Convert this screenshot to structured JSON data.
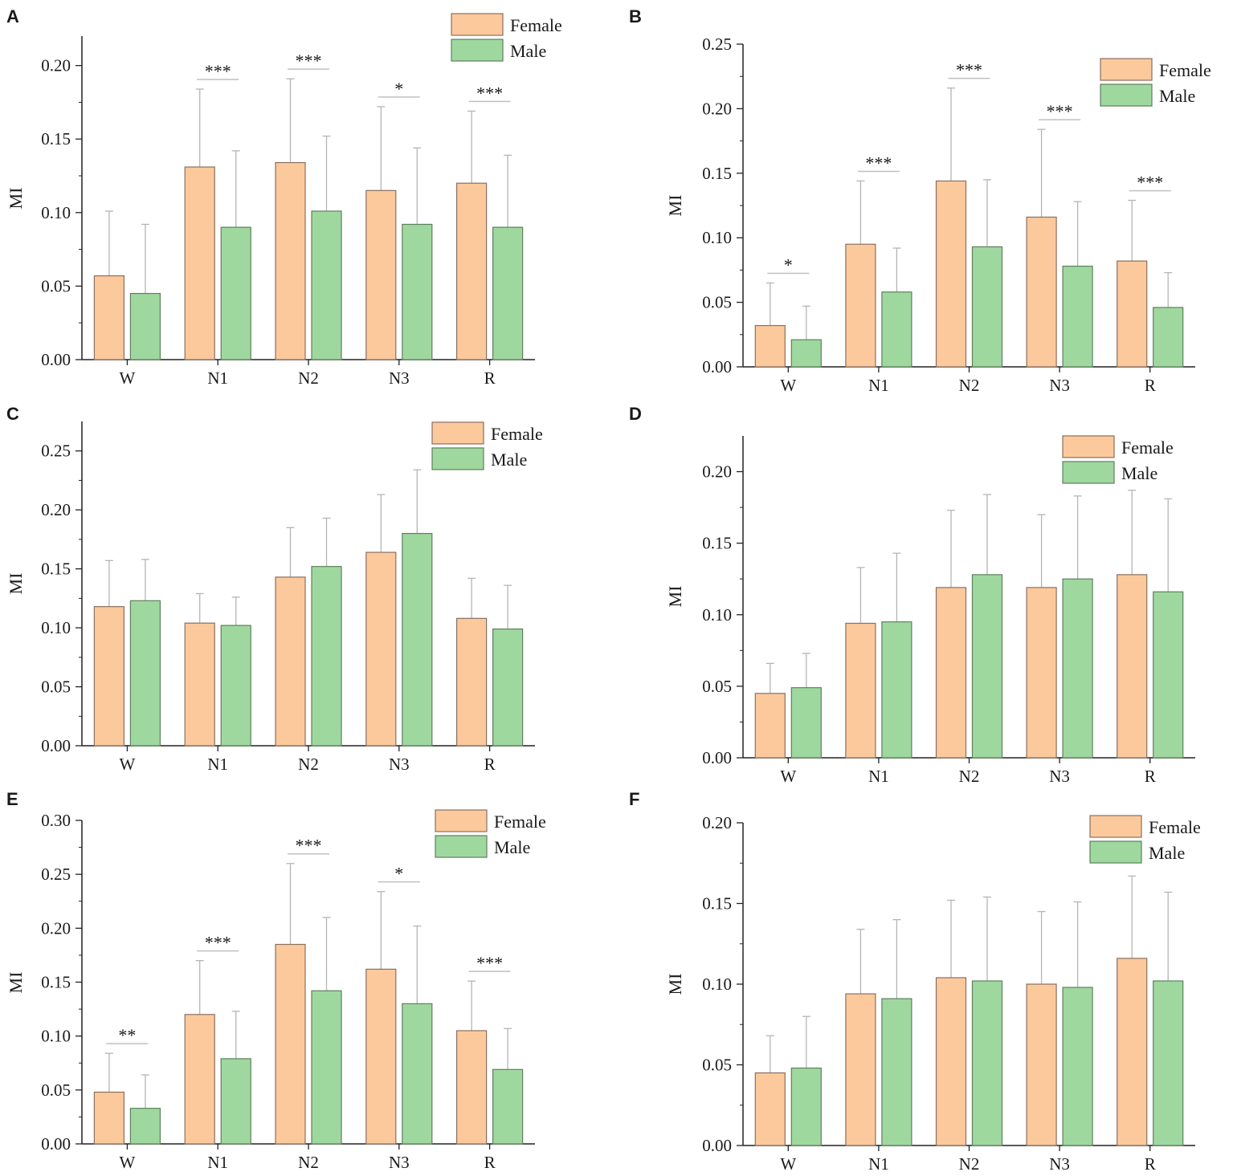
{
  "legend": {
    "female": "Female",
    "male": "Male"
  },
  "colors": {
    "female_fill": "#fbc99b",
    "female_stroke": "#8a7060",
    "male_fill": "#9fd89f",
    "male_stroke": "#5f7f5f",
    "error_bar": "#b5b5b5",
    "axis": "#222222"
  },
  "chart_data": [
    {
      "panel": "A",
      "type": "bar",
      "ylabel": "MI",
      "categories": [
        "W",
        "N1",
        "N2",
        "N3",
        "R"
      ],
      "ylim": [
        0,
        0.22
      ],
      "yticks": [
        "0.00",
        "0.05",
        "0.10",
        "0.15",
        "0.20"
      ],
      "ytick_values": [
        0,
        0.05,
        0.1,
        0.15,
        0.2
      ],
      "legend_position": "top-right",
      "series": [
        {
          "name": "Female",
          "values": [
            0.057,
            0.131,
            0.134,
            0.115,
            0.12
          ],
          "errors": [
            0.044,
            0.053,
            0.057,
            0.057,
            0.049
          ]
        },
        {
          "name": "Male",
          "values": [
            0.045,
            0.09,
            0.101,
            0.092,
            0.09
          ],
          "errors": [
            0.047,
            0.052,
            0.051,
            0.052,
            0.049
          ]
        }
      ],
      "significance": [
        "",
        "***",
        "***",
        "*",
        "***"
      ]
    },
    {
      "panel": "B",
      "type": "bar",
      "ylabel": "MI",
      "categories": [
        "W",
        "N1",
        "N2",
        "N3",
        "R"
      ],
      "ylim": [
        0,
        0.25
      ],
      "yticks": [
        "0.00",
        "0.05",
        "0.10",
        "0.15",
        "0.20",
        "0.25"
      ],
      "ytick_values": [
        0,
        0.05,
        0.1,
        0.15,
        0.2,
        0.25
      ],
      "legend_position": "top-right",
      "series": [
        {
          "name": "Female",
          "values": [
            0.032,
            0.095,
            0.144,
            0.116,
            0.082
          ],
          "errors": [
            0.033,
            0.049,
            0.072,
            0.068,
            0.047
          ]
        },
        {
          "name": "Male",
          "values": [
            0.021,
            0.058,
            0.093,
            0.078,
            0.046
          ],
          "errors": [
            0.026,
            0.034,
            0.052,
            0.05,
            0.027
          ]
        }
      ],
      "significance": [
        "*",
        "***",
        "***",
        "***",
        "***"
      ]
    },
    {
      "panel": "C",
      "type": "bar",
      "ylabel": "MI",
      "categories": [
        "W",
        "N1",
        "N2",
        "N3",
        "R"
      ],
      "ylim": [
        0,
        0.275
      ],
      "yticks": [
        "0.00",
        "0.05",
        "0.10",
        "0.15",
        "0.20",
        "0.25"
      ],
      "ytick_values": [
        0,
        0.05,
        0.1,
        0.15,
        0.2,
        0.25
      ],
      "legend_position": "top-right",
      "series": [
        {
          "name": "Female",
          "values": [
            0.118,
            0.104,
            0.143,
            0.164,
            0.108
          ],
          "errors": [
            0.039,
            0.025,
            0.042,
            0.049,
            0.034
          ]
        },
        {
          "name": "Male",
          "values": [
            0.123,
            0.102,
            0.152,
            0.18,
            0.099
          ],
          "errors": [
            0.035,
            0.024,
            0.041,
            0.054,
            0.037
          ]
        }
      ],
      "significance": [
        "",
        "",
        "",
        "",
        ""
      ]
    },
    {
      "panel": "D",
      "type": "bar",
      "ylabel": "MI",
      "categories": [
        "W",
        "N1",
        "N2",
        "N3",
        "R"
      ],
      "ylim": [
        0,
        0.225
      ],
      "yticks": [
        "0.00",
        "0.05",
        "0.10",
        "0.15",
        "0.20"
      ],
      "ytick_values": [
        0,
        0.05,
        0.1,
        0.15,
        0.2
      ],
      "legend_position": "top-right",
      "series": [
        {
          "name": "Female",
          "values": [
            0.045,
            0.094,
            0.119,
            0.119,
            0.128
          ],
          "errors": [
            0.021,
            0.039,
            0.054,
            0.051,
            0.059
          ]
        },
        {
          "name": "Male",
          "values": [
            0.049,
            0.095,
            0.128,
            0.125,
            0.116
          ],
          "errors": [
            0.024,
            0.048,
            0.056,
            0.058,
            0.065
          ]
        }
      ],
      "significance": [
        "",
        "",
        "",
        "",
        ""
      ]
    },
    {
      "panel": "E",
      "type": "bar",
      "ylabel": "MI",
      "categories": [
        "W",
        "N1",
        "N2",
        "N3",
        "R"
      ],
      "ylim": [
        0,
        0.3
      ],
      "yticks": [
        "0.00",
        "0.05",
        "0.10",
        "0.15",
        "0.20",
        "0.25",
        "0.30"
      ],
      "ytick_values": [
        0,
        0.05,
        0.1,
        0.15,
        0.2,
        0.25,
        0.3
      ],
      "legend_position": "top-right",
      "series": [
        {
          "name": "Female",
          "values": [
            0.048,
            0.12,
            0.185,
            0.162,
            0.105
          ],
          "errors": [
            0.036,
            0.05,
            0.075,
            0.072,
            0.046
          ]
        },
        {
          "name": "Male",
          "values": [
            0.033,
            0.079,
            0.142,
            0.13,
            0.069
          ],
          "errors": [
            0.031,
            0.044,
            0.068,
            0.072,
            0.038
          ]
        }
      ],
      "significance": [
        "**",
        "***",
        "***",
        "*",
        "***"
      ]
    },
    {
      "panel": "F",
      "type": "bar",
      "ylabel": "MI",
      "categories": [
        "W",
        "N1",
        "N2",
        "N3",
        "R"
      ],
      "ylim": [
        0,
        0.2
      ],
      "yticks": [
        "0.00",
        "0.05",
        "0.10",
        "0.15",
        "0.20"
      ],
      "ytick_values": [
        0,
        0.05,
        0.1,
        0.15,
        0.2
      ],
      "legend_position": "top-right",
      "series": [
        {
          "name": "Female",
          "values": [
            0.045,
            0.094,
            0.104,
            0.1,
            0.116
          ],
          "errors": [
            0.023,
            0.04,
            0.048,
            0.045,
            0.051
          ]
        },
        {
          "name": "Male",
          "values": [
            0.048,
            0.091,
            0.102,
            0.098,
            0.102
          ],
          "errors": [
            0.032,
            0.049,
            0.052,
            0.053,
            0.055
          ]
        }
      ],
      "significance": [
        "",
        "",
        "",
        "",
        ""
      ]
    }
  ]
}
